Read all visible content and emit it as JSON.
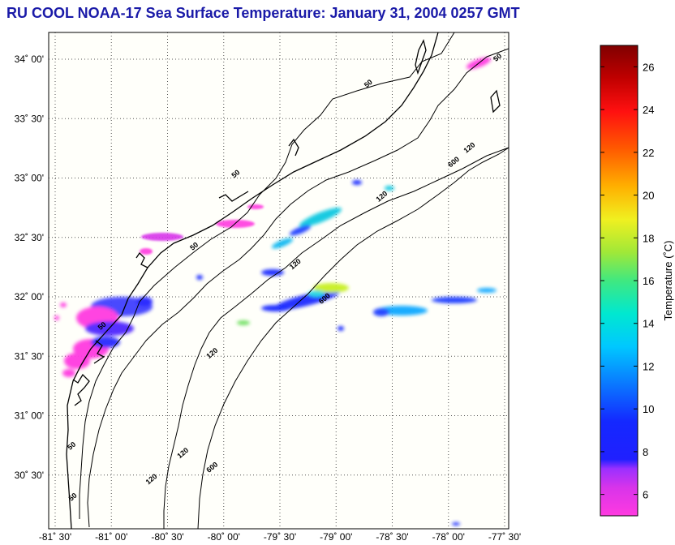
{
  "title": "RU COOL  NOAA-17  Sea Surface Temperature:  January 31, 2004 0257 GMT",
  "map": {
    "lat_ticks": [
      {
        "deg": 34,
        "label": "34˚ 00'"
      },
      {
        "deg": 33.5,
        "label": "33˚ 30'"
      },
      {
        "deg": 33,
        "label": "33˚ 00'"
      },
      {
        "deg": 32.5,
        "label": "32˚ 30'"
      },
      {
        "deg": 32,
        "label": "32˚ 00'"
      },
      {
        "deg": 31.5,
        "label": "31˚ 30'"
      },
      {
        "deg": 31,
        "label": "31˚ 00'"
      },
      {
        "deg": 30.5,
        "label": "30˚ 30'"
      }
    ],
    "lon_ticks": [
      {
        "deg": -81.5,
        "label": "-81˚ 30'"
      },
      {
        "deg": -81,
        "label": "-81˚ 00'"
      },
      {
        "deg": -80.5,
        "label": "-80˚ 30'"
      },
      {
        "deg": -80,
        "label": "-80˚ 00'"
      },
      {
        "deg": -79.5,
        "label": "-79˚ 30'"
      },
      {
        "deg": -79,
        "label": "-79˚ 00'"
      },
      {
        "deg": -78.5,
        "label": "-78˚ 30'"
      },
      {
        "deg": -78,
        "label": "-78˚ 00'"
      },
      {
        "deg": -77.5,
        "label": "-77˚ 30'"
      }
    ],
    "contour_labels": [
      {
        "text": "50",
        "lon": -77.55,
        "lat": 34.0
      },
      {
        "text": "50",
        "lon": -78.7,
        "lat": 33.78
      },
      {
        "text": "50",
        "lon": -79.88,
        "lat": 33.02
      },
      {
        "text": "50",
        "lon": -80.25,
        "lat": 32.41
      },
      {
        "text": "50",
        "lon": -81.07,
        "lat": 31.74
      },
      {
        "text": "50",
        "lon": -81.34,
        "lat": 30.73
      },
      {
        "text": "50",
        "lon": -81.33,
        "lat": 30.3
      },
      {
        "text": "120",
        "lon": -77.8,
        "lat": 33.24
      },
      {
        "text": "120",
        "lon": -78.58,
        "lat": 32.83
      },
      {
        "text": "120",
        "lon": -79.35,
        "lat": 32.26
      },
      {
        "text": "120",
        "lon": -80.09,
        "lat": 31.51
      },
      {
        "text": "120",
        "lon": -80.35,
        "lat": 30.67
      },
      {
        "text": "120",
        "lon": -80.63,
        "lat": 30.45
      },
      {
        "text": "600",
        "lon": -77.94,
        "lat": 33.12
      },
      {
        "text": "600",
        "lon": -79.09,
        "lat": 31.97
      },
      {
        "text": "600",
        "lon": -80.09,
        "lat": 30.55
      }
    ]
  },
  "colorbar": {
    "label": "Temperature (˚C)",
    "min": 5,
    "max": 27,
    "ticks": [
      6,
      8,
      10,
      12,
      14,
      16,
      18,
      20,
      22,
      24,
      26
    ]
  },
  "colors": {
    "title": "#1a1aa8",
    "contour": "#000000",
    "grid": "#666666"
  }
}
